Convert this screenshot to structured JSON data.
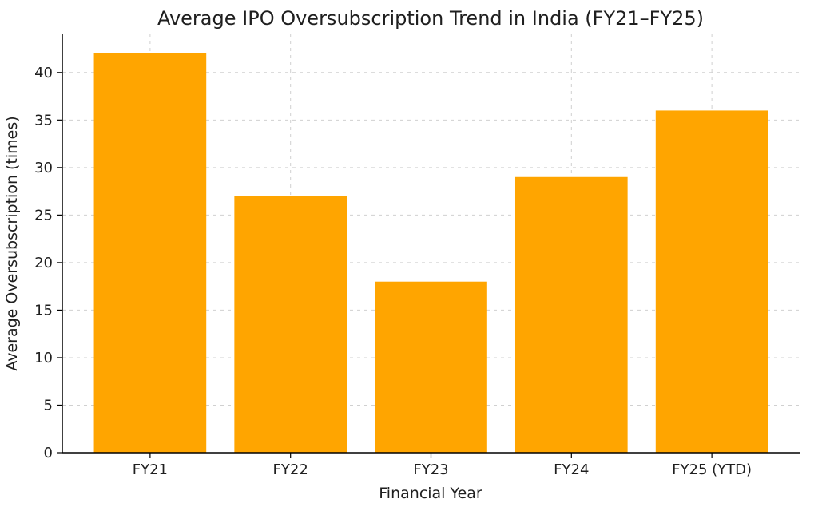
{
  "chart_data": {
    "type": "bar",
    "title": "Average IPO Oversubscription Trend in India (FY21–FY25)",
    "xlabel": "Financial Year",
    "ylabel": "Average Oversubscription (times)",
    "categories": [
      "FY21",
      "FY22",
      "FY23",
      "FY24",
      "FY25 (YTD)"
    ],
    "values": [
      42,
      27,
      18,
      29,
      36
    ],
    "yticks": [
      0,
      5,
      10,
      15,
      20,
      25,
      30,
      35,
      40
    ],
    "ylim": [
      0,
      44.1
    ],
    "bar_color": "#FFA500",
    "grid_color": "#d0d0d0",
    "axis_color": "#000000",
    "text_color": "#1f1f1f",
    "background": "#ffffff",
    "grid": "dashed horizontal and vertical gridlines",
    "legend": "none"
  }
}
